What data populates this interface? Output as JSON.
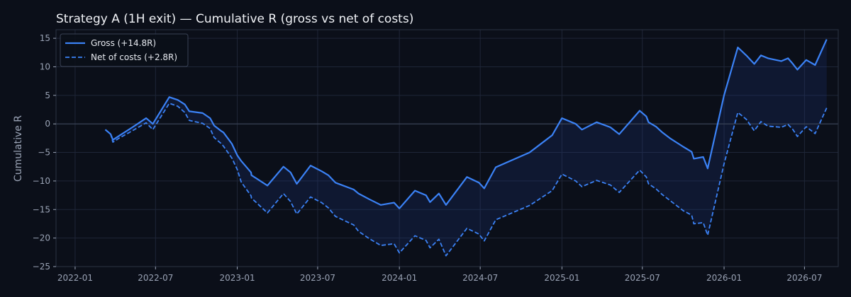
{
  "chart_data": {
    "type": "line",
    "title": "Strategy A (1H exit) — Cumulative R (gross vs net of costs)",
    "xlabel": "",
    "ylabel": "Cumulative R",
    "xlim": [
      "2021-11-19",
      "2026-09-15"
    ],
    "ylim": [
      -25,
      16.5
    ],
    "x_ticks": [
      "2022-01",
      "2022-07",
      "2023-01",
      "2023-07",
      "2024-01",
      "2024-07",
      "2025-01",
      "2025-07",
      "2026-01",
      "2026-07"
    ],
    "y_ticks": [
      -25,
      -20,
      -15,
      -10,
      -5,
      0,
      5,
      10,
      15
    ],
    "y_tick_labels": [
      "−25",
      "−20",
      "−15",
      "−10",
      "−5",
      "0",
      "5",
      "10",
      "15"
    ],
    "grid": true,
    "zero_line": true,
    "legend_position": "top-left",
    "colors": {
      "background": "#0b0f19",
      "grid": "#1f2638",
      "zero_line": "#3d4658",
      "series": "#3b82f6",
      "fill": "#1e3a8a"
    },
    "series": [
      {
        "name": "Gross (+14.8R)",
        "style": "solid",
        "x": [
          "2022-03-10",
          "2022-03-22",
          "2022-03-27",
          "2022-04-10",
          "2022-05-10",
          "2022-06-10",
          "2022-06-25",
          "2022-08-01",
          "2022-08-20",
          "2022-09-05",
          "2022-09-15",
          "2022-10-15",
          "2022-11-01",
          "2022-11-10",
          "2022-11-25",
          "2022-12-01",
          "2022-12-20",
          "2023-01-01",
          "2023-01-10",
          "2023-02-01",
          "2023-02-02",
          "2023-03-10",
          "2023-04-15",
          "2023-05-01",
          "2023-05-15",
          "2023-06-15",
          "2023-07-10",
          "2023-07-25",
          "2023-08-10",
          "2023-09-20",
          "2023-10-01",
          "2023-10-25",
          "2023-11-20",
          "2023-12-20",
          "2024-01-01",
          "2024-02-05",
          "2024-03-01",
          "2024-03-10",
          "2024-03-30",
          "2024-04-15",
          "2024-06-01",
          "2024-06-28",
          "2024-07-10",
          "2024-08-05",
          "2024-10-20",
          "2024-12-10",
          "2025-01-01",
          "2025-02-01",
          "2025-02-15",
          "2025-03-20",
          "2025-04-20",
          "2025-05-10",
          "2025-06-25",
          "2025-07-10",
          "2025-07-15",
          "2025-08-01",
          "2025-08-15",
          "2025-09-01",
          "2025-10-01",
          "2025-10-20",
          "2025-10-25",
          "2025-11-15",
          "2025-11-25",
          "2026-01-01",
          "2026-02-01",
          "2026-02-20",
          "2026-03-10",
          "2026-03-25",
          "2026-04-10",
          "2026-05-10",
          "2026-05-25",
          "2026-06-05",
          "2026-06-15",
          "2026-07-05",
          "2026-07-25",
          "2026-08-20"
        ],
        "values": [
          -1,
          -1.8,
          -2.8,
          -2.1,
          -0.6,
          1.0,
          0,
          4.7,
          4.2,
          3.4,
          2.2,
          1.9,
          1.0,
          -0.3,
          -1.2,
          -1.5,
          -3.5,
          -5.5,
          -6.5,
          -8.5,
          -9.0,
          -10.8,
          -7.5,
          -8.5,
          -10.5,
          -7.3,
          -8.3,
          -9.0,
          -10.3,
          -11.5,
          -12.2,
          -13.2,
          -14.2,
          -13.8,
          -14.8,
          -11.7,
          -12.5,
          -13.7,
          -12.2,
          -14.2,
          -9.3,
          -10.3,
          -11.3,
          -7.6,
          -5.0,
          -2.0,
          1.0,
          0,
          -1.0,
          0.3,
          -0.6,
          -1.8,
          2.3,
          1.3,
          0.3,
          -0.5,
          -1.5,
          -2.5,
          -4.0,
          -4.9,
          -6.1,
          -5.8,
          -7.8,
          5.0,
          13.4,
          12.0,
          10.5,
          12.0,
          11.5,
          11.0,
          11.5,
          10.5,
          9.5,
          11.2,
          10.3,
          14.8
        ]
      },
      {
        "name": "Net of costs (+2.8R)",
        "style": "dashed",
        "x": [
          "2022-03-10",
          "2022-03-22",
          "2022-03-27",
          "2022-04-10",
          "2022-05-10",
          "2022-06-10",
          "2022-06-25",
          "2022-08-01",
          "2022-08-20",
          "2022-09-05",
          "2022-09-15",
          "2022-10-15",
          "2022-11-01",
          "2022-11-10",
          "2022-11-25",
          "2022-12-01",
          "2022-12-20",
          "2023-01-01",
          "2023-01-10",
          "2023-02-01",
          "2023-02-02",
          "2023-03-10",
          "2023-04-15",
          "2023-05-01",
          "2023-05-15",
          "2023-06-15",
          "2023-07-10",
          "2023-07-25",
          "2023-08-10",
          "2023-09-20",
          "2023-10-01",
          "2023-10-25",
          "2023-11-20",
          "2023-12-20",
          "2024-01-01",
          "2024-02-05",
          "2024-03-01",
          "2024-03-10",
          "2024-03-30",
          "2024-04-15",
          "2024-06-01",
          "2024-06-28",
          "2024-07-10",
          "2024-08-05",
          "2024-10-20",
          "2024-12-10",
          "2025-01-01",
          "2025-02-01",
          "2025-02-15",
          "2025-03-20",
          "2025-04-20",
          "2025-05-10",
          "2025-06-25",
          "2025-07-10",
          "2025-07-15",
          "2025-08-01",
          "2025-08-15",
          "2025-09-01",
          "2025-10-01",
          "2025-10-20",
          "2025-10-25",
          "2025-11-15",
          "2025-11-25",
          "2026-01-01",
          "2026-02-01",
          "2026-02-20",
          "2026-03-10",
          "2026-03-25",
          "2026-04-10",
          "2026-05-10",
          "2026-05-25",
          "2026-06-05",
          "2026-06-15",
          "2026-07-05",
          "2026-07-25",
          "2026-08-20"
        ],
        "values": [
          -1,
          -1.8,
          -3.2,
          -2.5,
          -1.2,
          0.2,
          -1.0,
          3.6,
          3.1,
          2.0,
          0.6,
          0.1,
          -0.8,
          -2.4,
          -3.4,
          -3.9,
          -6.0,
          -8.0,
          -10.2,
          -12.6,
          -13.0,
          -15.6,
          -12.2,
          -13.6,
          -15.8,
          -12.8,
          -13.8,
          -14.7,
          -16.2,
          -17.7,
          -18.8,
          -20.1,
          -21.3,
          -21.0,
          -22.6,
          -19.6,
          -20.4,
          -21.7,
          -20.2,
          -23.1,
          -18.3,
          -19.3,
          -20.5,
          -16.8,
          -14.3,
          -11.7,
          -8.8,
          -10.0,
          -11.0,
          -9.9,
          -10.7,
          -12.0,
          -8.1,
          -9.3,
          -10.5,
          -11.4,
          -12.4,
          -13.4,
          -15.2,
          -16.0,
          -17.5,
          -17.3,
          -19.5,
          -7.0,
          2.0,
          0.8,
          -1.2,
          0.4,
          -0.4,
          -0.6,
          -0.1,
          -1.0,
          -2.2,
          -0.5,
          -1.7,
          2.8
        ]
      }
    ]
  }
}
